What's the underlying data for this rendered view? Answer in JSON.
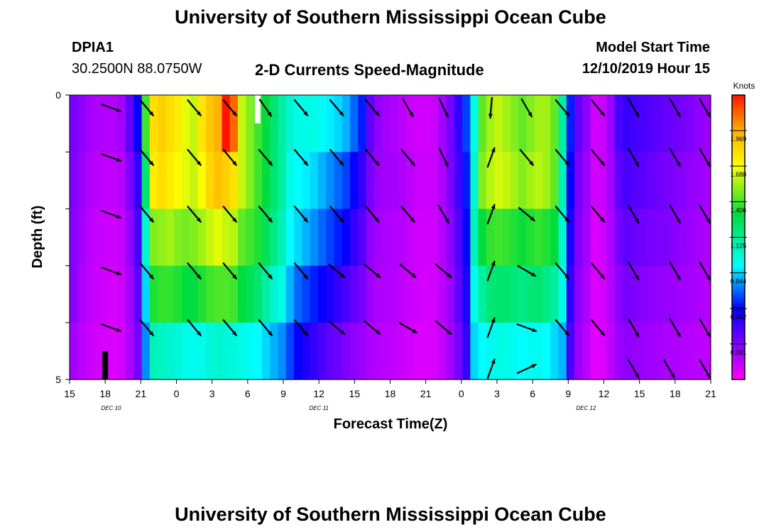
{
  "header": {
    "title": "University of Southern Mississippi Ocean Cube",
    "station": "DPIA1",
    "coords": "30.2500N 88.0750W",
    "subtitle": "2-D Currents Speed-Magnitude",
    "model_label": "Model Start Time",
    "model_time": "12/10/2019 Hour 15"
  },
  "footer": {
    "title": "University of Southern Mississippi Ocean Cube"
  },
  "chart_data": {
    "type": "heatmap",
    "title": "2-D Currents Speed-Magnitude",
    "xlabel": "Forecast Time(Z)",
    "ylabel": "Depth (ft)",
    "x_tick_labels": [
      "15",
      "18",
      "21",
      "0",
      "3",
      "6",
      "9",
      "12",
      "15",
      "18",
      "21",
      "0",
      "3",
      "6",
      "9",
      "12",
      "15",
      "18",
      "21"
    ],
    "x_tick_hours": [
      15,
      18,
      21,
      24,
      27,
      30,
      33,
      36,
      39,
      42,
      45,
      48,
      51,
      54,
      57,
      60,
      63,
      66,
      69
    ],
    "xlim": [
      15,
      69
    ],
    "date_labels": [
      {
        "label": "DEC 10",
        "hour": 18.5
      },
      {
        "label": "DEC 11",
        "hour": 36
      },
      {
        "label": "DEC 12",
        "hour": 58.5
      }
    ],
    "y_tick_labels": [
      "0",
      "5"
    ],
    "ylim": [
      0,
      5
    ],
    "colorbar": {
      "title": "Knots",
      "ticks": [
        "1.969",
        "1.688",
        "1.406",
        "1.125",
        "0.844",
        "0.562",
        "0.281"
      ],
      "tick_values": [
        1.969,
        1.688,
        1.406,
        1.125,
        0.844,
        0.562,
        0.281
      ],
      "range": [
        0,
        2.25
      ]
    },
    "speed_grid": {
      "rows": [
        "layer1",
        "layer2",
        "layer3",
        "layer4",
        "layer5"
      ],
      "cols": [
        [
          0.3,
          0.28,
          0.27,
          0.26,
          0.2
        ],
        [
          0.25,
          0.22,
          0.2,
          0.18,
          0.15
        ],
        [
          0.2,
          0.17,
          0.15,
          0.14,
          0.12
        ],
        [
          0.18,
          0.15,
          0.13,
          0.12,
          0.1
        ],
        [
          0.17,
          0.14,
          0.12,
          0.1,
          0.09
        ],
        [
          0.17,
          0.14,
          0.11,
          0.09,
          0.08
        ],
        [
          0.2,
          0.16,
          0.13,
          0.11,
          0.1
        ],
        [
          0.35,
          0.28,
          0.24,
          0.2,
          0.18
        ],
        [
          0.55,
          0.45,
          0.4,
          0.35,
          0.3
        ],
        [
          1.4,
          1.2,
          1.0,
          0.85,
          0.75
        ],
        [
          1.8,
          1.75,
          1.5,
          1.35,
          1.05
        ],
        [
          1.85,
          1.8,
          1.52,
          1.38,
          1.02
        ],
        [
          1.8,
          1.75,
          1.55,
          1.38,
          1.0
        ],
        [
          1.75,
          1.7,
          1.5,
          1.35,
          0.98
        ],
        [
          1.65,
          1.65,
          1.48,
          1.3,
          0.95
        ],
        [
          1.6,
          1.6,
          1.5,
          1.3,
          0.93
        ],
        [
          1.78,
          1.7,
          1.55,
          1.35,
          0.94
        ],
        [
          1.88,
          1.83,
          1.6,
          1.4,
          0.98
        ],
        [
          1.95,
          1.9,
          1.65,
          1.42,
          1.0
        ],
        [
          2.25,
          1.85,
          1.6,
          1.42,
          0.98
        ],
        [
          2.1,
          1.78,
          1.58,
          1.4,
          0.97
        ],
        [
          1.6,
          1.6,
          1.45,
          1.3,
          0.95
        ],
        [
          1.5,
          1.5,
          1.4,
          1.25,
          0.92
        ],
        [
          1.4,
          1.4,
          1.35,
          1.2,
          0.9
        ],
        [
          1.3,
          1.3,
          1.25,
          1.1,
          0.85
        ],
        [
          1.2,
          1.2,
          1.15,
          1.0,
          0.8
        ],
        [
          1.1,
          1.1,
          1.05,
          0.95,
          0.75
        ],
        [
          1.0,
          0.95,
          0.9,
          0.8,
          0.65
        ],
        [
          0.95,
          0.9,
          0.85,
          0.7,
          0.55
        ],
        [
          0.95,
          0.88,
          0.8,
          0.65,
          0.5
        ],
        [
          0.95,
          0.85,
          0.75,
          0.6,
          0.45
        ],
        [
          0.92,
          0.8,
          0.7,
          0.55,
          0.4
        ],
        [
          0.88,
          0.75,
          0.65,
          0.5,
          0.35
        ],
        [
          0.85,
          0.7,
          0.6,
          0.45,
          0.32
        ],
        [
          0.8,
          0.65,
          0.55,
          0.4,
          0.28
        ],
        [
          0.7,
          0.55,
          0.45,
          0.35,
          0.25
        ],
        [
          0.6,
          0.45,
          0.38,
          0.3,
          0.22
        ],
        [
          0.35,
          0.3,
          0.25,
          0.22,
          0.18
        ],
        [
          0.25,
          0.22,
          0.2,
          0.18,
          0.16
        ],
        [
          0.2,
          0.2,
          0.18,
          0.17,
          0.15
        ],
        [
          0.18,
          0.2,
          0.17,
          0.16,
          0.14
        ],
        [
          0.15,
          0.18,
          0.16,
          0.14,
          0.12
        ],
        [
          0.12,
          0.15,
          0.13,
          0.12,
          0.1
        ],
        [
          0.1,
          0.12,
          0.1,
          0.1,
          0.08
        ],
        [
          0.1,
          0.11,
          0.1,
          0.09,
          0.08
        ],
        [
          0.12,
          0.12,
          0.11,
          0.1,
          0.09
        ],
        [
          0.2,
          0.18,
          0.16,
          0.15,
          0.13
        ],
        [
          0.3,
          0.28,
          0.25,
          0.22,
          0.2
        ],
        [
          0.45,
          0.42,
          0.38,
          0.35,
          0.3
        ],
        [
          0.65,
          0.6,
          0.55,
          0.5,
          0.45
        ],
        [
          0.95,
          1.0,
          1.05,
          0.95,
          0.85
        ],
        [
          1.45,
          1.5,
          1.3,
          1.1,
          0.9
        ],
        [
          1.55,
          1.58,
          1.38,
          1.18,
          0.93
        ],
        [
          1.6,
          1.62,
          1.4,
          1.2,
          0.95
        ],
        [
          1.55,
          1.6,
          1.38,
          1.2,
          0.95
        ],
        [
          1.5,
          1.55,
          1.35,
          1.18,
          0.92
        ],
        [
          1.45,
          1.5,
          1.32,
          1.15,
          0.9
        ],
        [
          1.5,
          1.55,
          1.35,
          1.18,
          0.92
        ],
        [
          1.55,
          1.58,
          1.38,
          1.2,
          0.93
        ],
        [
          1.55,
          1.55,
          1.35,
          1.15,
          0.9
        ],
        [
          1.45,
          1.45,
          1.3,
          1.1,
          0.85
        ],
        [
          1.1,
          1.05,
          1.0,
          0.95,
          0.8
        ],
        [
          0.6,
          0.55,
          0.5,
          0.45,
          0.4
        ],
        [
          0.35,
          0.3,
          0.28,
          0.25,
          0.22
        ],
        [
          0.25,
          0.22,
          0.2,
          0.18,
          0.15
        ],
        [
          0.1,
          0.1,
          0.08,
          0.08,
          0.06
        ],
        [
          0.12,
          0.12,
          0.1,
          0.1,
          0.08
        ],
        [
          0.22,
          0.2,
          0.18,
          0.16,
          0.14
        ],
        [
          0.4,
          0.35,
          0.3,
          0.25,
          0.22
        ],
        [
          0.45,
          0.4,
          0.35,
          0.3,
          0.25
        ],
        [
          0.42,
          0.38,
          0.33,
          0.28,
          0.23
        ],
        [
          0.4,
          0.36,
          0.31,
          0.26,
          0.22
        ],
        [
          0.38,
          0.34,
          0.3,
          0.25,
          0.21
        ],
        [
          0.36,
          0.32,
          0.29,
          0.24,
          0.2
        ],
        [
          0.34,
          0.3,
          0.28,
          0.23,
          0.19
        ],
        [
          0.32,
          0.28,
          0.26,
          0.22,
          0.18
        ],
        [
          0.3,
          0.26,
          0.24,
          0.21,
          0.17
        ],
        [
          0.28,
          0.24,
          0.22,
          0.2,
          0.16
        ],
        [
          0.25,
          0.22,
          0.2,
          0.18,
          0.15
        ],
        [
          0.22,
          0.2,
          0.18,
          0.16,
          0.14
        ]
      ]
    },
    "vector_hours": [
      18.5,
      21.5,
      25.5,
      28.5,
      31.5,
      34.5,
      37.5,
      40.5,
      43.5,
      46.5,
      50.5,
      53.5,
      56.5,
      59.5,
      62.5,
      66.0,
      68.5
    ],
    "vector_directions_deg": [
      [
        110,
        140,
        140,
        140,
        145,
        140,
        140,
        140,
        150,
        155,
        185,
        150,
        140,
        140,
        150,
        150,
        150
      ],
      [
        110,
        140,
        140,
        140,
        140,
        140,
        140,
        140,
        140,
        155,
        20,
        140,
        140,
        140,
        150,
        150,
        150
      ],
      [
        110,
        140,
        140,
        140,
        140,
        140,
        140,
        140,
        140,
        150,
        20,
        130,
        140,
        140,
        150,
        150,
        150
      ],
      [
        110,
        140,
        140,
        140,
        140,
        140,
        130,
        130,
        130,
        130,
        20,
        120,
        140,
        140,
        150,
        150,
        150
      ],
      [
        110,
        140,
        140,
        140,
        140,
        140,
        130,
        130,
        120,
        130,
        20,
        110,
        140,
        140,
        150,
        150,
        150
      ]
    ],
    "extra_vectors": [
      {
        "hour": 50.5,
        "dir": 20
      },
      {
        "hour": 53.5,
        "dir": 65
      },
      {
        "hour": 62.5,
        "dir": 150
      },
      {
        "hour": 65.5,
        "dir": 150
      },
      {
        "hour": 68.5,
        "dir": 150
      }
    ],
    "bottom_marker_hour": 18
  }
}
